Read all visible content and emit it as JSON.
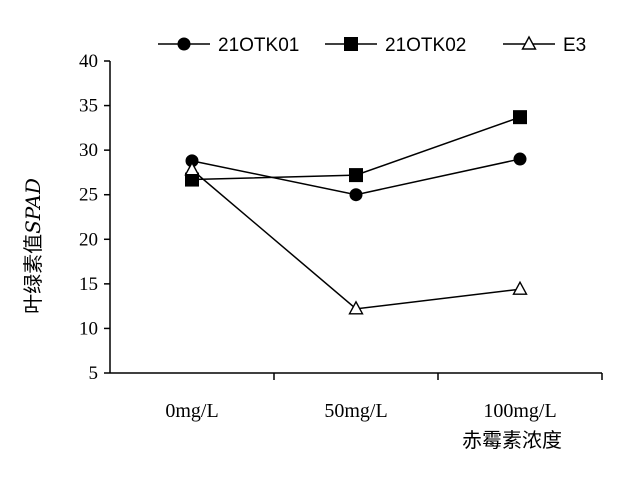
{
  "chart_data": {
    "type": "line",
    "categories": [
      "0mg/L",
      "50mg/L",
      "100mg/L"
    ],
    "series": [
      {
        "name": "21OTK01",
        "marker": "circle",
        "values": [
          28.8,
          25.0,
          29.0
        ]
      },
      {
        "name": "21OTK02",
        "marker": "square",
        "values": [
          26.7,
          27.2,
          33.7
        ]
      },
      {
        "name": "E3",
        "marker": "triangle-open",
        "values": [
          27.8,
          12.2,
          14.4
        ]
      }
    ],
    "xlabel": "赤霉素浓度",
    "ylabel_prefix": "叶绿素值",
    "ylabel_suffix": "SPAD",
    "ylim": [
      5,
      40
    ],
    "yticks": [
      5,
      10,
      15,
      20,
      25,
      30,
      35,
      40
    ],
    "grid": false,
    "legend_position": "top",
    "line_color": "#000000"
  }
}
